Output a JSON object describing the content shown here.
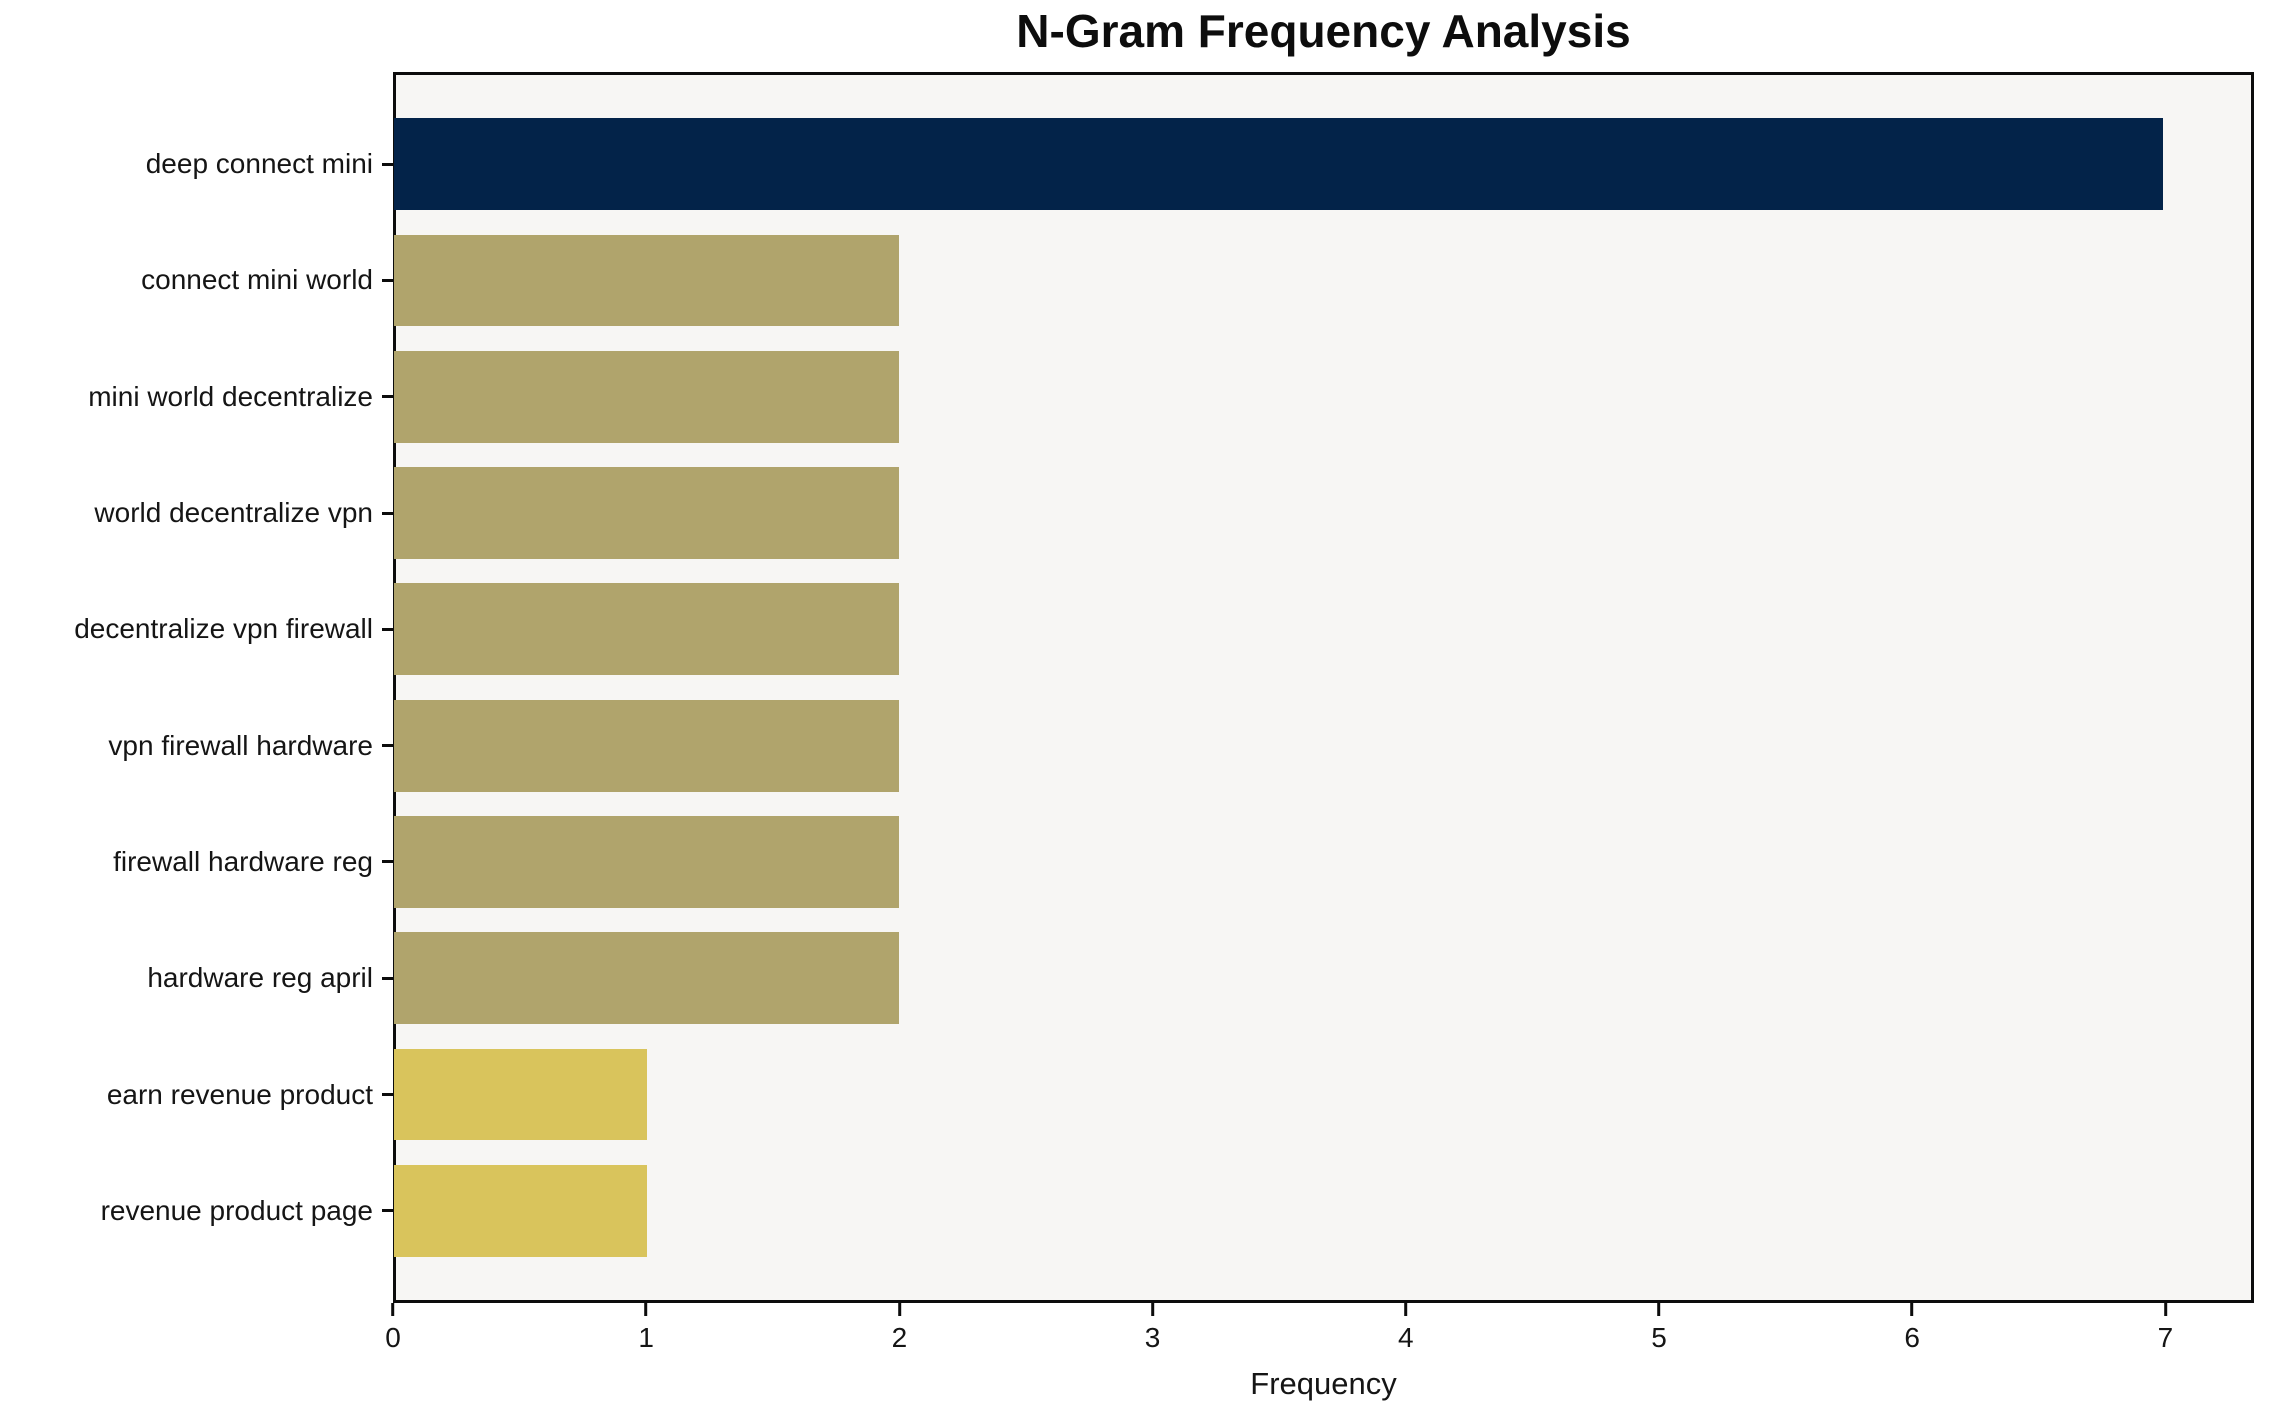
{
  "chart_data": {
    "type": "bar",
    "orientation": "horizontal",
    "title": "N-Gram Frequency Analysis",
    "xlabel": "Frequency",
    "ylabel": "",
    "categories": [
      "deep connect mini",
      "connect mini world",
      "mini world decentralize",
      "world decentralize vpn",
      "decentralize vpn firewall",
      "vpn firewall hardware",
      "firewall hardware reg",
      "hardware reg april",
      "earn revenue product",
      "revenue product page"
    ],
    "values": [
      7,
      2,
      2,
      2,
      2,
      2,
      2,
      2,
      1,
      1
    ],
    "bar_colors": [
      "#032349",
      "#b0a46c",
      "#b0a46c",
      "#b0a46c",
      "#b0a46c",
      "#b0a46c",
      "#b0a46c",
      "#b0a46c",
      "#d9c45c",
      "#d9c45c"
    ],
    "x_ticks": [
      0,
      1,
      2,
      3,
      4,
      5,
      6,
      7
    ],
    "xlim": [
      0,
      7.35
    ],
    "grid": false,
    "legend": null,
    "plot_background": "#f7f6f4",
    "axis_color": "#0c0c0c"
  }
}
